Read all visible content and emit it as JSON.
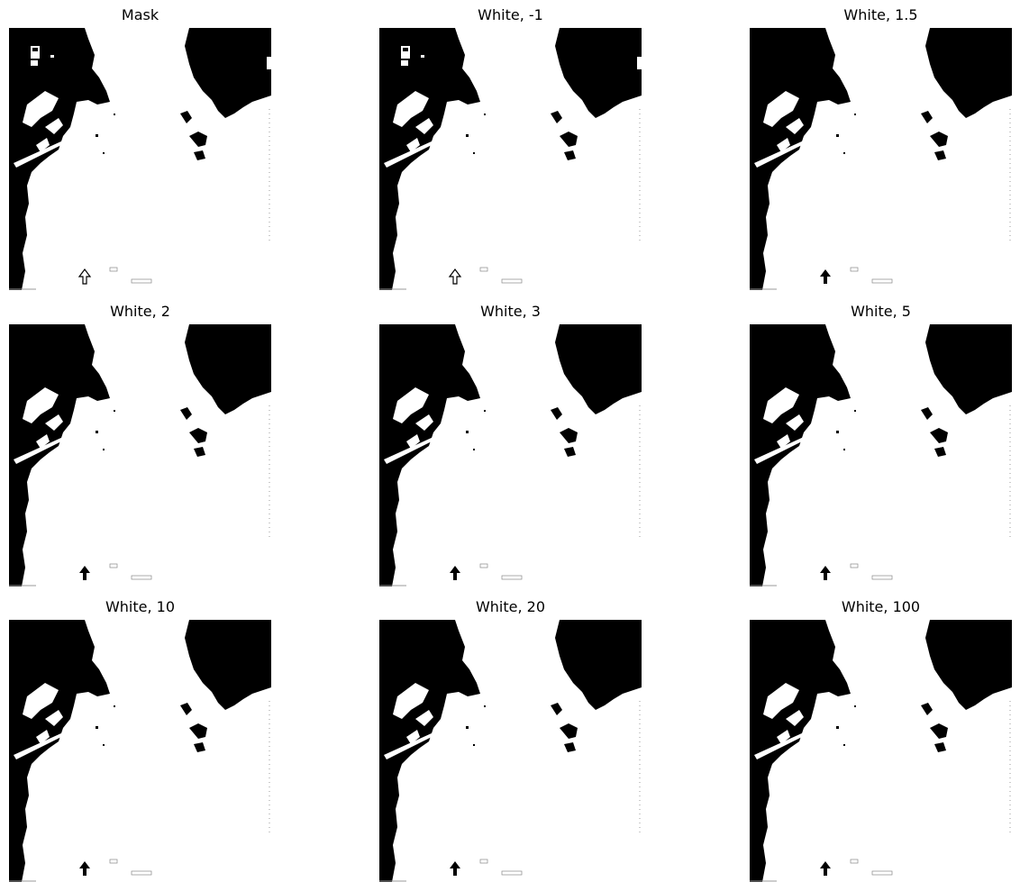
{
  "panels": [
    {
      "title": "Mask",
      "arrow": "outline",
      "artifact": true
    },
    {
      "title": "White, -1",
      "arrow": "outline",
      "artifact": true
    },
    {
      "title": "White, 1.5",
      "arrow": "filled",
      "artifact": false
    },
    {
      "title": "White, 2",
      "arrow": "filled",
      "artifact": false
    },
    {
      "title": "White, 3",
      "arrow": "filled",
      "artifact": false
    },
    {
      "title": "White, 5",
      "arrow": "filled",
      "artifact": false
    },
    {
      "title": "White, 10",
      "arrow": "filled",
      "artifact": false
    },
    {
      "title": "White, 20",
      "arrow": "filled",
      "artifact": false
    },
    {
      "title": "White, 100",
      "arrow": "filled",
      "artifact": false
    }
  ],
  "colors": {
    "land": "#000000",
    "water": "#ffffff"
  }
}
